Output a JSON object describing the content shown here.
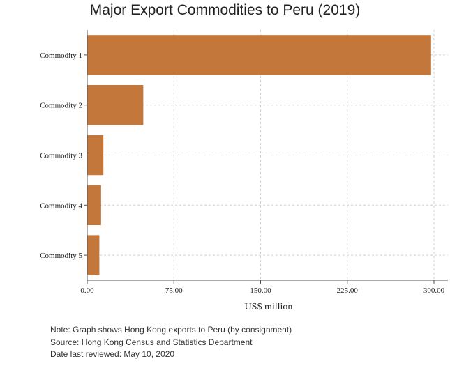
{
  "chart_data": {
    "type": "bar",
    "orientation": "horizontal",
    "title": "Major Export Commodities to Peru (2019)",
    "xlabel": "US$ million",
    "ylabel": "",
    "categories": [
      "Commodity 1",
      "Commodity 2",
      "Commodity 3",
      "Commodity 4",
      "Commodity 5"
    ],
    "values": [
      297.5,
      48.5,
      14.0,
      12.0,
      10.5
    ],
    "xlim": [
      0,
      310
    ],
    "xticks": [
      0,
      75,
      150,
      225,
      300
    ],
    "xtick_labels": [
      "0.00",
      "75.00",
      "150.00",
      "225.00",
      "300.00"
    ],
    "grid": true,
    "bar_color": "#c4773a"
  },
  "notes": {
    "note": "Note: Graph shows Hong Kong exports to Peru (by consignment)",
    "source": "Source: Hong Kong Census and Statistics Department",
    "reviewed": "Date last reviewed: May 10, 2020"
  }
}
